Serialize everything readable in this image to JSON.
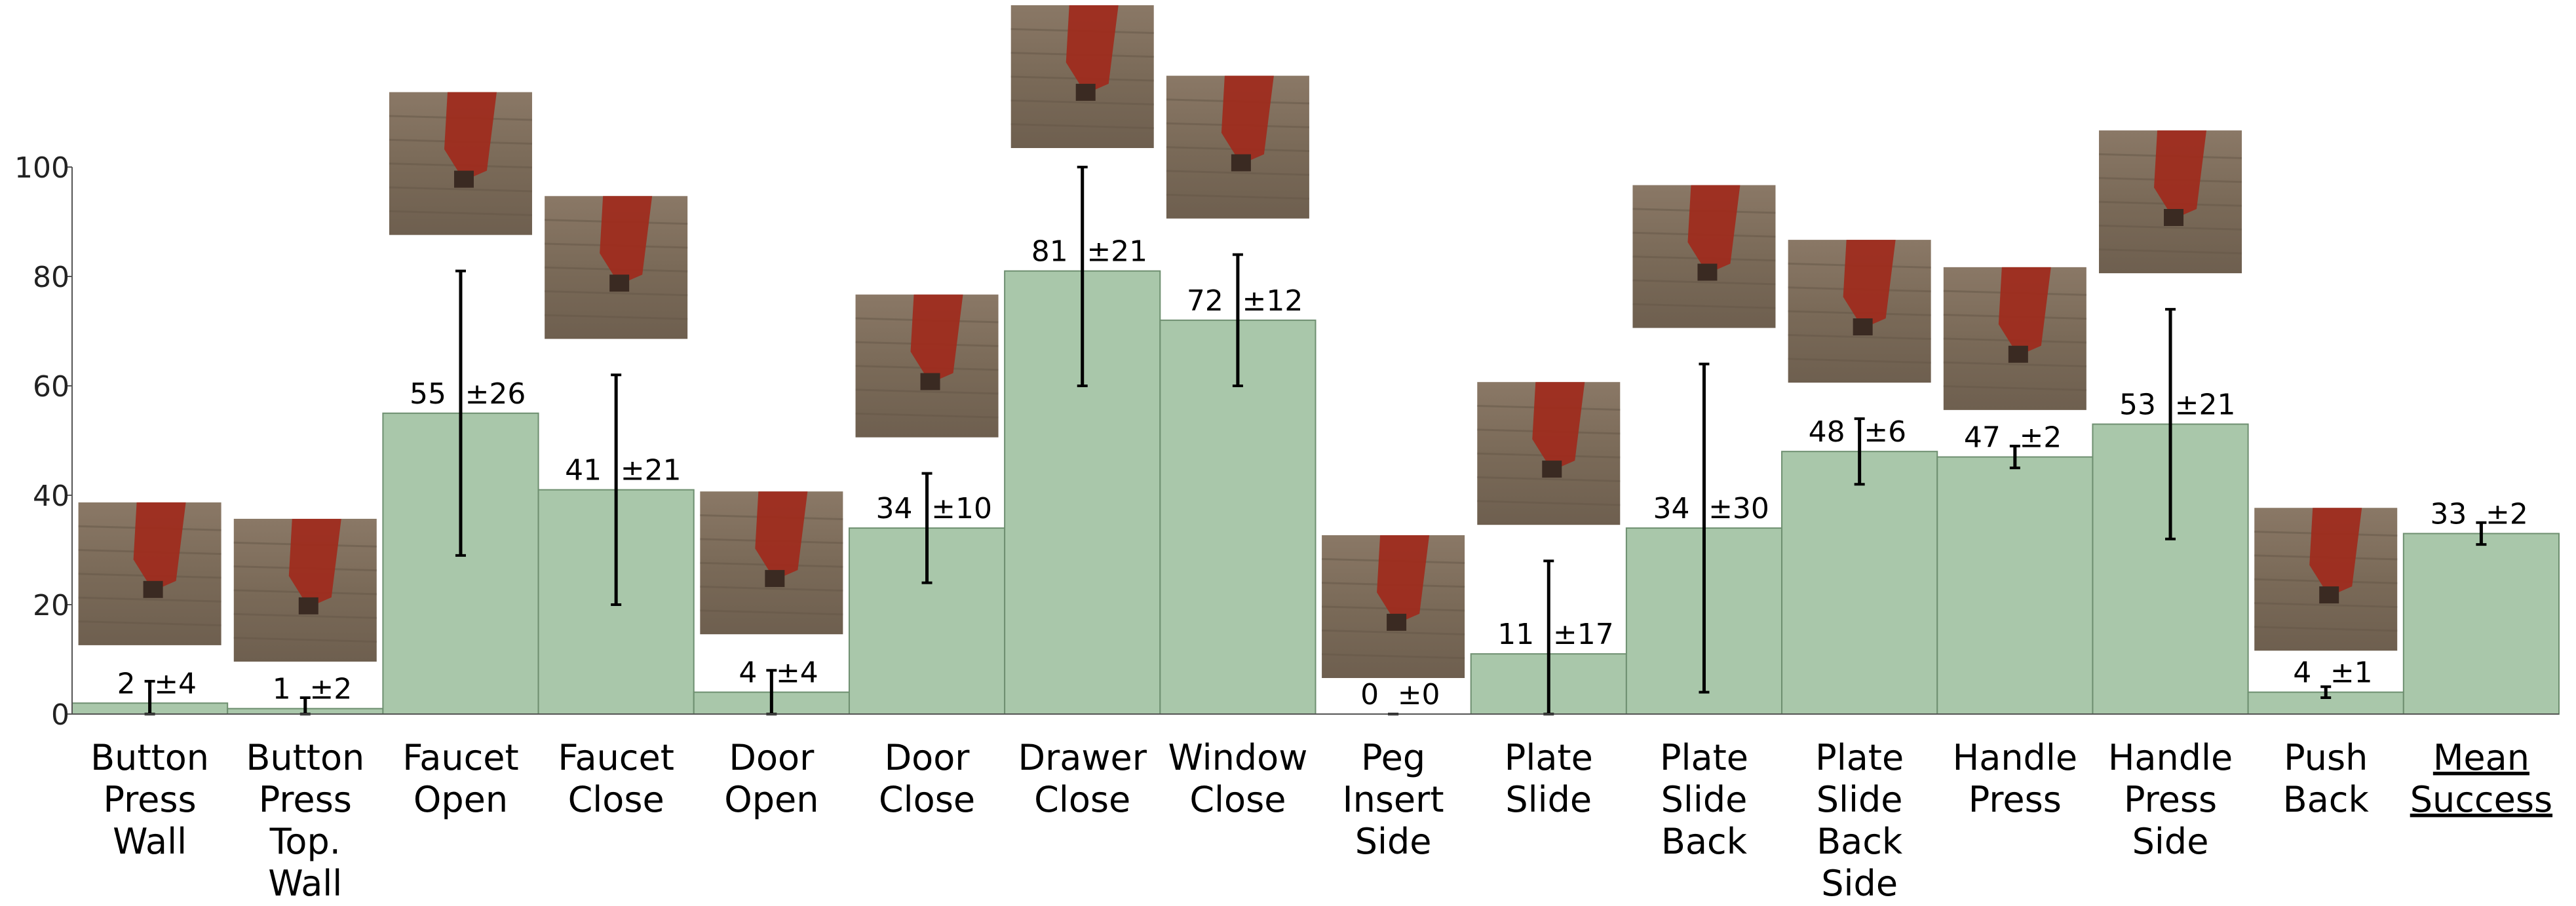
{
  "chart_data": {
    "type": "bar",
    "ylim": [
      0,
      100
    ],
    "yticks": [
      0,
      20,
      40,
      60,
      80,
      100
    ],
    "grid": false,
    "categories": [
      [
        "Button",
        "Press",
        "Wall"
      ],
      [
        "Button",
        "Press",
        "Top.",
        "Wall"
      ],
      [
        "Faucet",
        "Open"
      ],
      [
        "Faucet",
        "Close"
      ],
      [
        "Door",
        "Open"
      ],
      [
        "Door",
        "Close"
      ],
      [
        "Drawer",
        "Close"
      ],
      [
        "Window",
        "Close"
      ],
      [
        "Peg",
        "Insert",
        "Side"
      ],
      [
        "Plate",
        "Slide"
      ],
      [
        "Plate",
        "Slide",
        "Back"
      ],
      [
        "Plate",
        "Slide",
        "Back",
        "Side"
      ],
      [
        "Handle",
        "Press"
      ],
      [
        "Handle",
        "Press",
        "Side"
      ],
      [
        "Push",
        "Back"
      ],
      [
        "Mean",
        "Success"
      ]
    ],
    "values": [
      2,
      1,
      55,
      41,
      4,
      34,
      81,
      72,
      0,
      11,
      34,
      48,
      47,
      53,
      4,
      33
    ],
    "errors": [
      4,
      2,
      26,
      21,
      4,
      10,
      21,
      12,
      0,
      17,
      30,
      6,
      2,
      21,
      1,
      2
    ],
    "value_labels": [
      "2",
      "1",
      "55",
      "41",
      "4",
      "34",
      "81",
      "72",
      "0",
      "11",
      "34",
      "48",
      "47",
      "53",
      "4",
      "33"
    ],
    "error_labels": [
      "±4",
      "±2",
      "±26",
      "±21",
      "±4",
      "±10",
      "±21",
      "±12",
      "±0",
      "±17",
      "±30",
      "±6",
      "±2",
      "±21",
      "±1",
      "±2"
    ],
    "underlined_category_index": 15,
    "thumbnail_category_indices": [
      0,
      1,
      2,
      3,
      4,
      5,
      6,
      7,
      8,
      9,
      10,
      11,
      12,
      13,
      14
    ],
    "colors": {
      "bar_fill": "#a9c7aa",
      "bar_edge": "#6e8f70",
      "error_bar": "#000000",
      "axis": "#555555",
      "thumb_floor": "#7e6d5c",
      "thumb_robot": "#a02a1c"
    }
  }
}
